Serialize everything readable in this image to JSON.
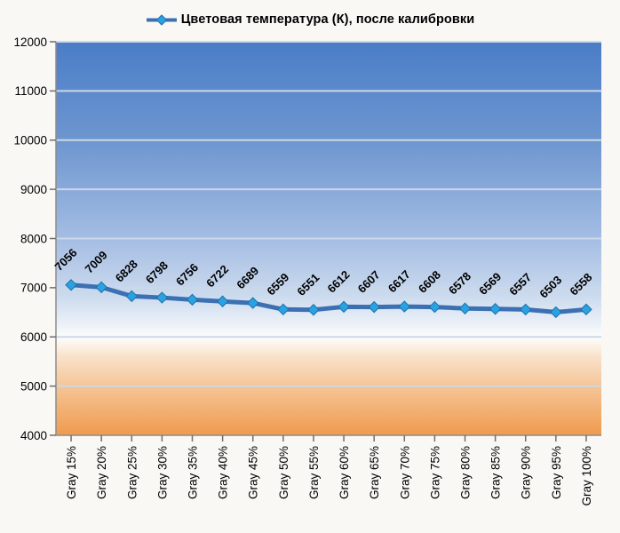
{
  "legend": {
    "label": "Цветовая температура (К), после калибровки"
  },
  "chart_data": {
    "type": "line",
    "title": "Цветовая температура (К), после калибровки",
    "categories": [
      "Gray 15%",
      "Gray 20%",
      "Gray 25%",
      "Gray 30%",
      "Gray 35%",
      "Gray 40%",
      "Gray 45%",
      "Gray 50%",
      "Gray 55%",
      "Gray 60%",
      "Gray 65%",
      "Gray 70%",
      "Gray 75%",
      "Gray 80%",
      "Gray 85%",
      "Gray 90%",
      "Gray 95%",
      "Gray 100%"
    ],
    "series": [
      {
        "name": "Цветовая температура (К), после калибровки",
        "values": [
          7056,
          7009,
          6828,
          6798,
          6756,
          6722,
          6689,
          6559,
          6551,
          6612,
          6607,
          6617,
          6608,
          6578,
          6569,
          6557,
          6503,
          6558
        ]
      }
    ],
    "xlabel": "",
    "ylabel": "",
    "ylim": [
      4000,
      12000
    ],
    "ytick_step": 1000,
    "grid": true,
    "legend_position": "top-center",
    "data_labels": true,
    "data_label_rotation": -45,
    "x_label_rotation": -90,
    "colors": {
      "line": "#3c70b3",
      "marker_fill": "#2aa2e2",
      "marker_stroke": "#1e6fa9",
      "gridline": "#ccd8e6",
      "axis": "#8c8c8c",
      "tick": "#6e6e6e",
      "text": "#000000",
      "page_background": "#f9f8f5"
    },
    "plot_background_stops": [
      {
        "offset": 0.0,
        "color": "#4a7dc8"
      },
      {
        "offset": 0.26,
        "color": "#6f97d0"
      },
      {
        "offset": 0.5,
        "color": "#a4bde3"
      },
      {
        "offset": 0.645,
        "color": "#cbdaee"
      },
      {
        "offset": 0.715,
        "color": "#eaf0f8"
      },
      {
        "offset": 0.752,
        "color": "#fdfdfa"
      },
      {
        "offset": 0.8,
        "color": "#f9e2ca"
      },
      {
        "offset": 0.875,
        "color": "#f5c596"
      },
      {
        "offset": 1.0,
        "color": "#f09a4e"
      }
    ]
  }
}
